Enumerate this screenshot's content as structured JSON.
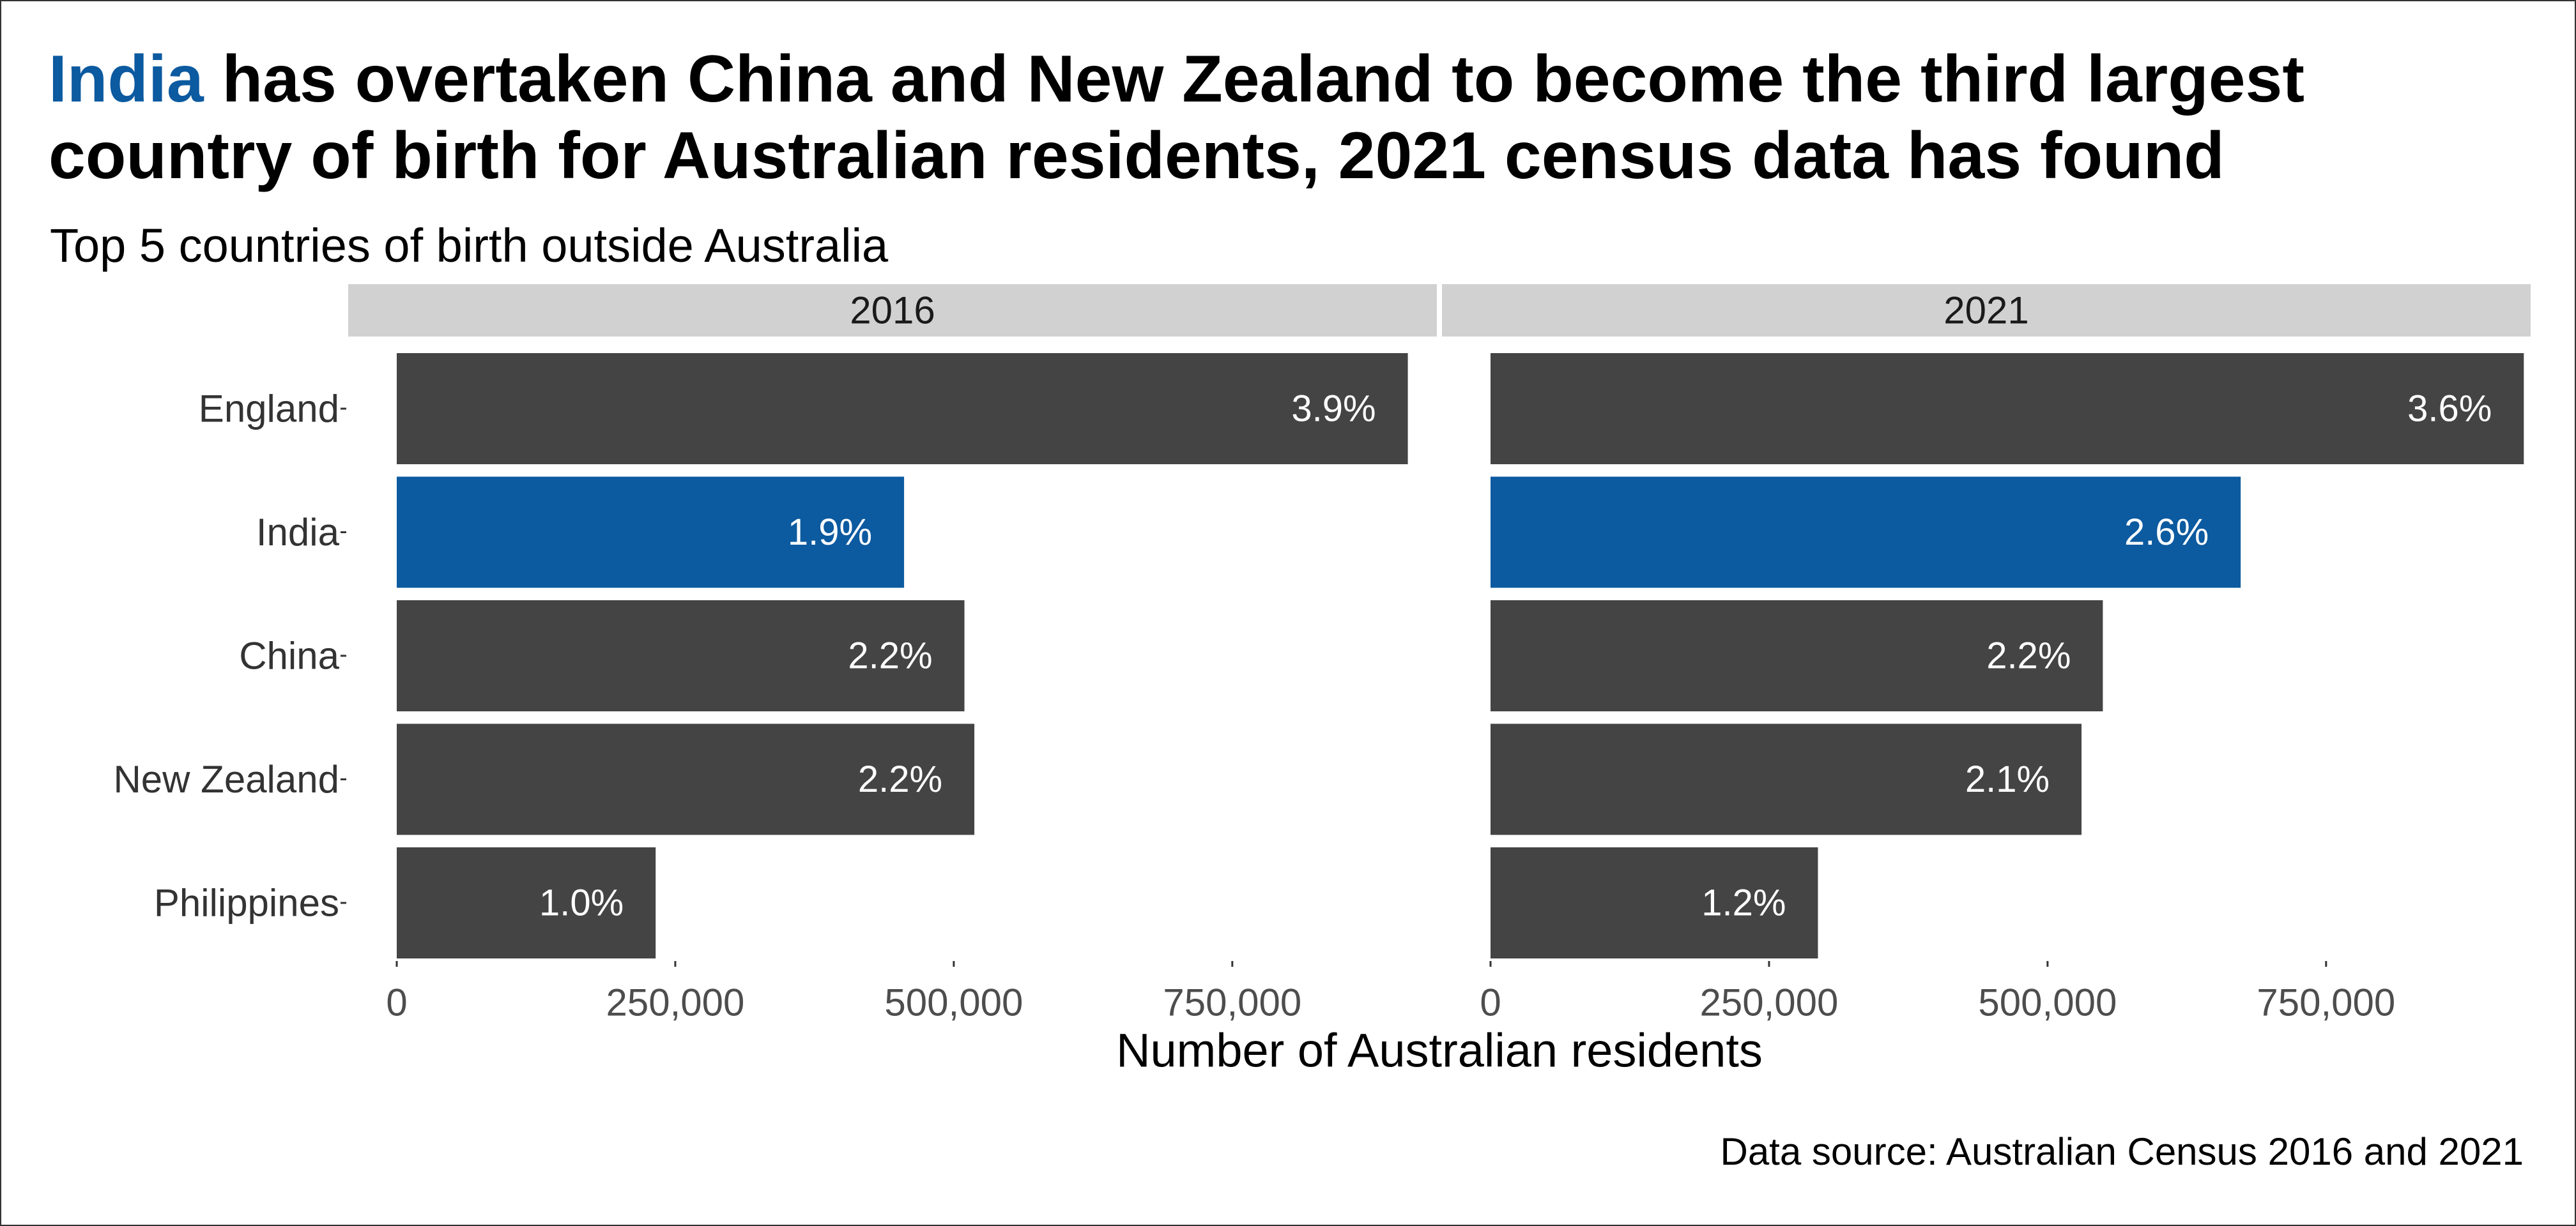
{
  "title": {
    "highlight": "India",
    "rest": " has overtaken China and New Zealand to become the third largest country of birth for Australian residents, 2021 census data has found"
  },
  "subtitle": "Top 5 countries of birth outside Australia",
  "caption": "Data source: Australian Census 2016 and 2021",
  "colors": {
    "bar": "#444444",
    "highlight": "#0c5aa0",
    "strip": "#d1d1d1"
  },
  "chart_data": {
    "type": "bar",
    "orientation": "horizontal",
    "faceted_by": "year",
    "categories": [
      "England",
      "India",
      "China",
      "New Zealand",
      "Philippines"
    ],
    "highlight_category": "India",
    "xlabel": "Number of Australian residents",
    "xlim": [
      0,
      960000
    ],
    "xticks": [
      0,
      250000,
      500000,
      750000
    ],
    "xtick_labels": [
      "0",
      "250,000",
      "500,000",
      "750,000"
    ],
    "grid": false,
    "panels": [
      {
        "name": "2016",
        "values": [
          907570,
          455390,
          509560,
          518470,
          232390
        ],
        "labels": [
          "3.9%",
          "1.9%",
          "2.2%",
          "2.2%",
          "1.0%"
        ]
      },
      {
        "name": "2021",
        "values": [
          927490,
          673350,
          549620,
          530490,
          293890
        ],
        "labels": [
          "3.6%",
          "2.6%",
          "2.2%",
          "2.1%",
          "1.2%"
        ]
      }
    ]
  }
}
